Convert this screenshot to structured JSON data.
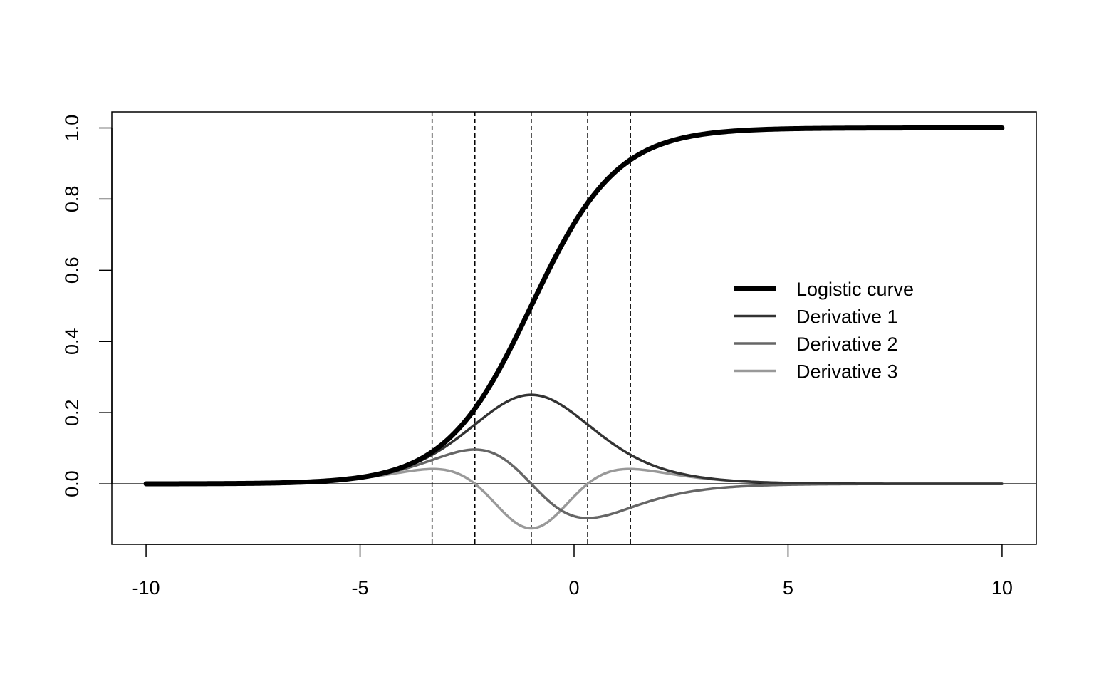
{
  "chart_data": {
    "type": "line",
    "title": "",
    "xlabel": "",
    "ylabel": "",
    "xlim": [
      -10.8,
      10.8
    ],
    "ylim": [
      -0.17,
      1.045
    ],
    "x_ticks": [
      -10,
      -5,
      0,
      5,
      10
    ],
    "y_ticks": [
      0.0,
      0.2,
      0.4,
      0.6,
      0.8,
      1.0
    ],
    "x_tick_labels": [
      "-10",
      "-5",
      "0",
      "5",
      "10"
    ],
    "y_tick_labels": [
      "0.0",
      "0.2",
      "0.4",
      "0.6",
      "0.8",
      "1.0"
    ],
    "grid": false,
    "legend_position": "right",
    "reference_lines": {
      "horizontal": [
        0
      ],
      "vertical_dashed": [
        -3.317,
        -2.317,
        -1.0,
        0.317,
        1.317
      ]
    },
    "series": [
      {
        "name": "Logistic curve",
        "color": "#000000",
        "x": [
          -10,
          -9,
          -8,
          -7,
          -6,
          -5,
          -4.5,
          -4,
          -3.5,
          -3,
          -2.5,
          -2,
          -1.5,
          -1,
          -0.5,
          0,
          0.5,
          1,
          1.5,
          2,
          2.5,
          3,
          4,
          5,
          6,
          7,
          8,
          9,
          10
        ],
        "y": [
          0.0001,
          0.0003,
          0.0009,
          0.0025,
          0.0067,
          0.018,
          0.0293,
          0.0474,
          0.0759,
          0.1192,
          0.1824,
          0.2689,
          0.3775,
          0.5,
          0.6225,
          0.7311,
          0.8176,
          0.8808,
          0.9241,
          0.9526,
          0.9707,
          0.982,
          0.9933,
          0.9975,
          0.9991,
          0.9997,
          0.9999,
          1.0,
          1.0
        ]
      },
      {
        "name": "Derivative 1",
        "color": "#333333",
        "x": [
          -10,
          -9,
          -8,
          -7,
          -6,
          -5,
          -4.5,
          -4,
          -3.5,
          -3,
          -2.5,
          -2,
          -1.5,
          -1,
          -0.5,
          0,
          0.5,
          1,
          1.5,
          2,
          2.5,
          3,
          4,
          5,
          6,
          7,
          8,
          9,
          10
        ],
        "y": [
          0.0001,
          0.0003,
          0.0009,
          0.0025,
          0.0066,
          0.0177,
          0.0285,
          0.0452,
          0.0701,
          0.105,
          0.1491,
          0.1966,
          0.235,
          0.25,
          0.235,
          0.1966,
          0.1491,
          0.105,
          0.0701,
          0.0452,
          0.0285,
          0.0177,
          0.0066,
          0.0025,
          0.0009,
          0.0003,
          0.0001,
          0.0,
          0.0
        ]
      },
      {
        "name": "Derivative 2",
        "color": "#666666",
        "x": [
          -10,
          -9,
          -8,
          -7,
          -6,
          -5,
          -4.5,
          -4,
          -3.5,
          -3,
          -2.5,
          -2,
          -1.5,
          -1,
          -0.5,
          0,
          0.5,
          1,
          1.5,
          2,
          2.5,
          3,
          4,
          5,
          6,
          7,
          8,
          9,
          10
        ],
        "y": [
          0.0001,
          0.0003,
          0.0009,
          0.0025,
          0.0065,
          0.0171,
          0.0269,
          0.0409,
          0.0595,
          0.08,
          0.0947,
          0.0909,
          0.0587,
          0.0,
          -0.0587,
          -0.0909,
          -0.0947,
          -0.08,
          -0.0595,
          -0.0409,
          -0.0269,
          -0.0171,
          -0.0065,
          -0.0025,
          -0.0009,
          -0.0003,
          -0.0001,
          0.0,
          0.0
        ]
      },
      {
        "name": "Derivative 3",
        "color": "#999999",
        "x": [
          -10,
          -9,
          -8,
          -7,
          -6,
          -5,
          -4.5,
          -4,
          -3.5,
          -3,
          -2.5,
          -2,
          -1.5,
          -1,
          -0.5,
          0,
          0.5,
          1,
          1.5,
          2,
          2.5,
          3,
          4,
          5,
          6,
          7,
          8,
          9,
          10
        ],
        "y": [
          0.0001,
          0.0003,
          0.0009,
          0.0025,
          0.0064,
          0.0159,
          0.0241,
          0.0339,
          0.0419,
          0.0405,
          0.0218,
          -0.0257,
          -0.0888,
          -0.125,
          -0.0888,
          -0.0257,
          0.0218,
          0.0405,
          0.0419,
          0.0339,
          0.0241,
          0.0159,
          0.0064,
          0.0025,
          0.0009,
          0.0003,
          0.0001,
          0.0,
          0.0
        ]
      }
    ]
  }
}
